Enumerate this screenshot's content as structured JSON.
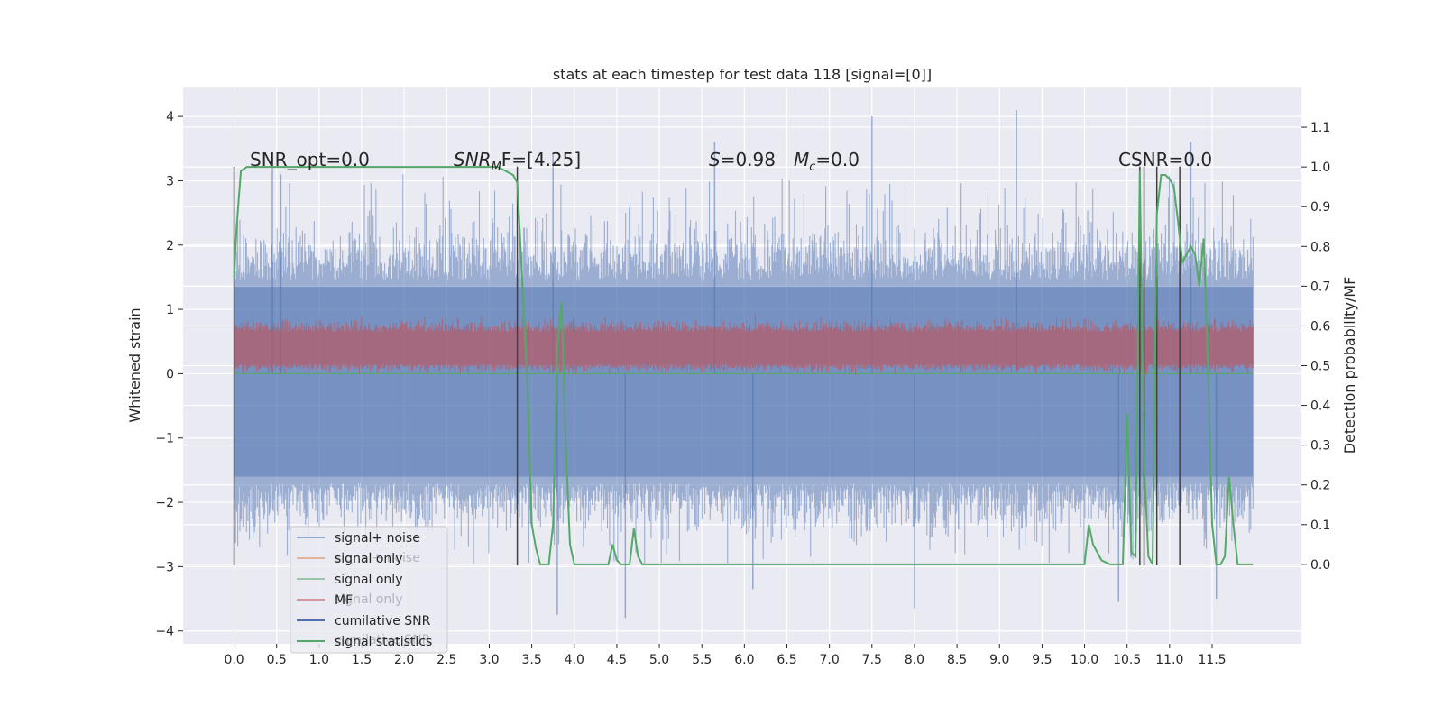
{
  "chart_data": {
    "type": "line",
    "title": "stats at each timestep for test data 118 [signal=[0]]",
    "xlabel": "",
    "ylabel": "Whitened strain",
    "y2label": "Detection probability/MF",
    "xlim": [
      -0.6,
      12.55
    ],
    "ylim": [
      -4.2,
      4.45
    ],
    "y2lim": [
      -0.2,
      1.2
    ],
    "xticks": [
      0.0,
      0.5,
      1.0,
      1.5,
      2.0,
      2.5,
      3.0,
      3.5,
      4.0,
      4.5,
      5.0,
      5.5,
      6.0,
      6.5,
      7.0,
      7.5,
      8.0,
      8.5,
      9.0,
      9.5,
      10.0,
      10.5,
      11.0,
      11.5
    ],
    "xtick_labels": [
      "0.0",
      "0.5",
      "1.0",
      "1.5",
      "2.0",
      "2.5",
      "3.0",
      "3.5",
      "4.0",
      "4.5",
      "5.0",
      "5.5",
      "6.0",
      "6.5",
      "7.0",
      "7.5",
      "8.0",
      "8.5",
      "9.0",
      "9.5",
      "10.0",
      "10.5",
      "11.0",
      "11.5"
    ],
    "yticks": [
      -4,
      -3,
      -2,
      -1,
      0,
      1,
      2,
      3,
      4
    ],
    "ytick_labels": [
      "−4",
      "−3",
      "−2",
      "−1",
      "0",
      "1",
      "2",
      "3",
      "4"
    ],
    "y2ticks": [
      0.0,
      0.1,
      0.2,
      0.3,
      0.4,
      0.5,
      0.6,
      0.7,
      0.8,
      0.9,
      1.0,
      1.1
    ],
    "y2tick_labels": [
      "0.0",
      "0.1",
      "0.2",
      "0.3",
      "0.4",
      "0.5",
      "0.6",
      "0.7",
      "0.8",
      "0.9",
      "1.0",
      "1.1"
    ],
    "grid": true,
    "legend_position": "lower-left",
    "legend": [
      {
        "label": "signal+ noise",
        "color": "#4C72B0",
        "alpha": 0.55
      },
      {
        "label": "signal only",
        "color": "#DD8452",
        "alpha": 0.55
      },
      {
        "label": "signal only",
        "color": "#55A868",
        "alpha": 0.55
      },
      {
        "label": "MF",
        "color": "#C44E52",
        "alpha": 0.55
      },
      {
        "label": "cumilative SNR",
        "color": "#4C72B0",
        "alpha": 1
      },
      {
        "label": "signal statistics",
        "color": "#55A868",
        "alpha": 1
      }
    ],
    "legend_ghost_labels": [
      {
        "text": "signal+ noise",
        "row": 1
      },
      {
        "text": "signal only",
        "row": 3
      },
      {
        "text": "cumilative SNR",
        "row": 5
      }
    ],
    "annotations": {
      "snr_opt": "SNR_opt=0.0",
      "snr_mf_base": "SNR",
      "snr_mf_sub": "M",
      "snr_mf_rest": "F=[4.25]",
      "s_label": "S",
      "s_value": "=0.98",
      "mc_label": "M",
      "mc_sub": "c",
      "mc_value": "=0.0",
      "csnr": "CSNR=0.0"
    },
    "colors": {
      "noise": "#4C72B0",
      "mf": "#C44E52",
      "stat": "#55A868",
      "vline": "#404040",
      "plot_bg": "#EAEAF2"
    },
    "x_end": 11.98,
    "noise_band": [
      -1.7,
      1.45
    ],
    "noise_peaks": [
      [
        0.45,
        3.2
      ],
      [
        0.55,
        3.1
      ],
      [
        3.75,
        3.4
      ],
      [
        5.65,
        3.6
      ],
      [
        7.5,
        4.0
      ],
      [
        9.2,
        4.1
      ],
      [
        11.25,
        3.6
      ],
      [
        3.8,
        -3.75
      ],
      [
        4.6,
        -3.8
      ],
      [
        6.1,
        -3.35
      ],
      [
        8.0,
        -3.65
      ],
      [
        10.4,
        -3.55
      ],
      [
        11.55,
        -3.5
      ]
    ],
    "mf_band": [
      0.15,
      0.65
    ],
    "vlines_x": [
      0.0,
      3.33,
      10.65,
      10.7,
      10.85,
      11.12
    ],
    "vlines_range": [
      -2.98,
      3.22
    ],
    "stat_series": {
      "x": [
        0.0,
        0.03,
        0.08,
        0.15,
        0.3,
        1.0,
        2.0,
        2.8,
        3.1,
        3.28,
        3.33,
        3.38,
        3.45,
        3.5,
        3.55,
        3.6,
        3.7,
        3.75,
        3.8,
        3.85,
        3.9,
        3.95,
        4.0,
        4.1,
        4.3,
        4.4,
        4.45,
        4.5,
        4.55,
        4.65,
        4.7,
        4.75,
        4.8,
        5.0,
        6.0,
        8.0,
        9.5,
        10.0,
        10.05,
        10.1,
        10.2,
        10.3,
        10.35,
        10.4,
        10.45,
        10.5,
        10.55,
        10.6,
        10.65,
        10.7,
        10.75,
        10.8,
        10.85,
        10.9,
        10.95,
        11.0,
        11.05,
        11.1,
        11.15,
        11.2,
        11.25,
        11.3,
        11.35,
        11.4,
        11.45,
        11.5,
        11.55,
        11.6,
        11.65,
        11.7,
        11.75,
        11.8,
        11.85,
        11.9,
        11.95,
        11.98
      ],
      "y": [
        0.72,
        0.85,
        0.99,
        1.0,
        1.0,
        1.0,
        1.0,
        1.0,
        1.0,
        0.98,
        0.96,
        0.75,
        0.45,
        0.1,
        0.04,
        0.0,
        0.0,
        0.1,
        0.55,
        0.66,
        0.3,
        0.05,
        0.0,
        0.0,
        0.0,
        0.0,
        0.05,
        0.01,
        0.0,
        0.0,
        0.09,
        0.02,
        0.0,
        0.0,
        0.0,
        0.0,
        0.0,
        0.0,
        0.1,
        0.05,
        0.01,
        0.0,
        0.0,
        0.0,
        0.0,
        0.38,
        0.03,
        0.02,
        0.99,
        0.25,
        0.02,
        0.0,
        0.88,
        0.98,
        0.98,
        0.97,
        0.95,
        0.86,
        0.76,
        0.78,
        0.8,
        0.78,
        0.7,
        0.82,
        0.5,
        0.1,
        0.0,
        0.0,
        0.02,
        0.22,
        0.1,
        0.0,
        0.0,
        0.0,
        0.0,
        0.0
      ]
    }
  }
}
